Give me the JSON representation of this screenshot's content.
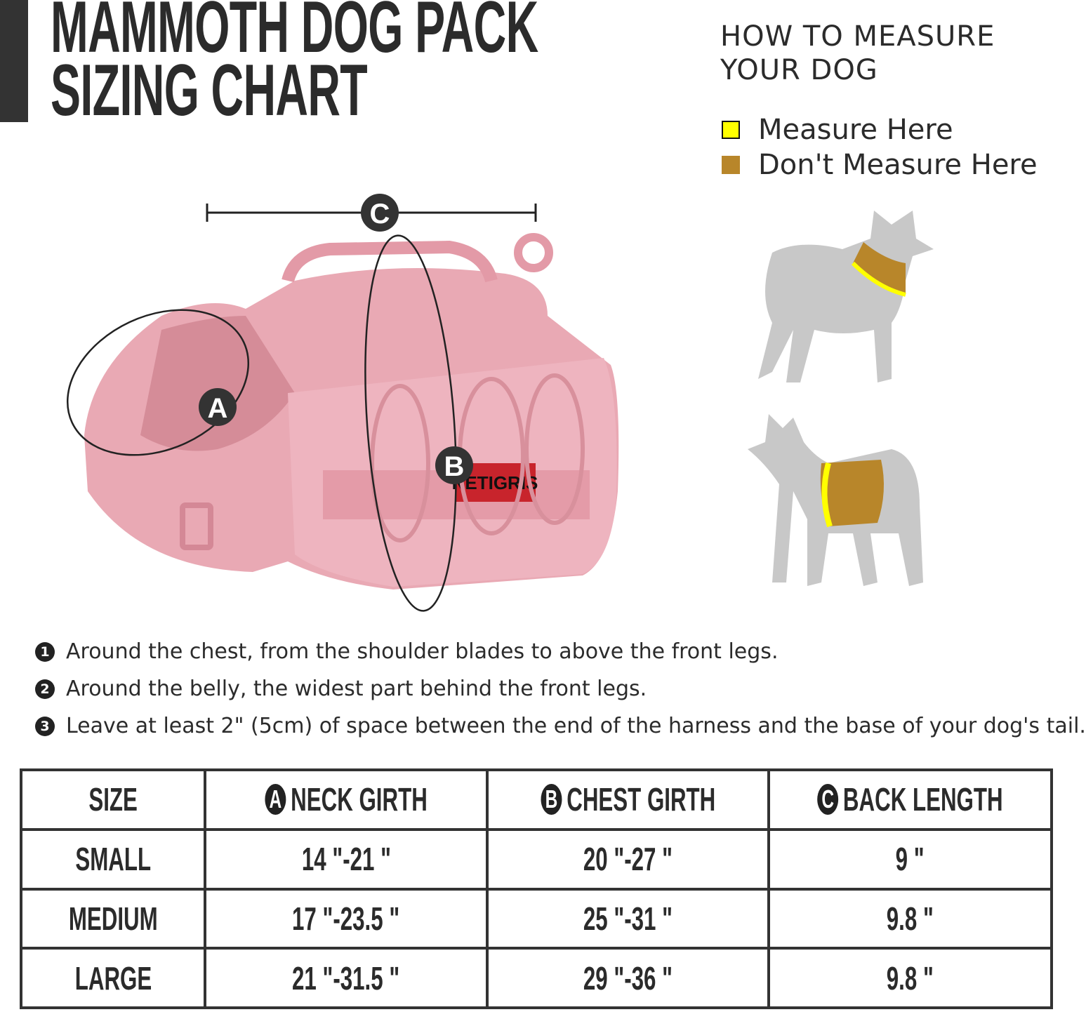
{
  "header": {
    "title_line1": "MAMMOTH DOG PACK",
    "title_line2": "SIZING CHART"
  },
  "how_to": {
    "title_line1": "HOW TO MEASURE",
    "title_line2": "YOUR DOG",
    "legend": [
      {
        "label": "Measure Here",
        "color": "#ffff00"
      },
      {
        "label": "Don't Measure Here",
        "color": "#b8862a"
      }
    ]
  },
  "product": {
    "brand_label": "NETIGRIS",
    "markers": [
      "A",
      "B",
      "C"
    ],
    "color": "#e9a9b4"
  },
  "notes": [
    {
      "num": "1",
      "text": "Around the chest, from the shoulder blades to above the front legs."
    },
    {
      "num": "2",
      "text": "Around the belly, the widest part behind the front legs."
    },
    {
      "num": "3",
      "text": "Leave at least 2\" (5cm) of space between the end of the harness and  the base of your dog's tail."
    }
  ],
  "table": {
    "headers": [
      {
        "badge": "",
        "label": "SIZE"
      },
      {
        "badge": "A",
        "label": "NECK GIRTH"
      },
      {
        "badge": "B",
        "label": "CHEST GIRTH"
      },
      {
        "badge": "C",
        "label": "BACK LENGTH"
      }
    ],
    "rows": [
      [
        "SMALL",
        "14 \"-21 \"",
        "20 \"-27 \"",
        "9 \""
      ],
      [
        "MEDIUM",
        "17 \"-23.5 \"",
        "25 \"-31 \"",
        "9.8 \""
      ],
      [
        "LARGE",
        "21 \"-31.5 \"",
        "29 \"-36 \"",
        "9.8 \""
      ]
    ]
  }
}
